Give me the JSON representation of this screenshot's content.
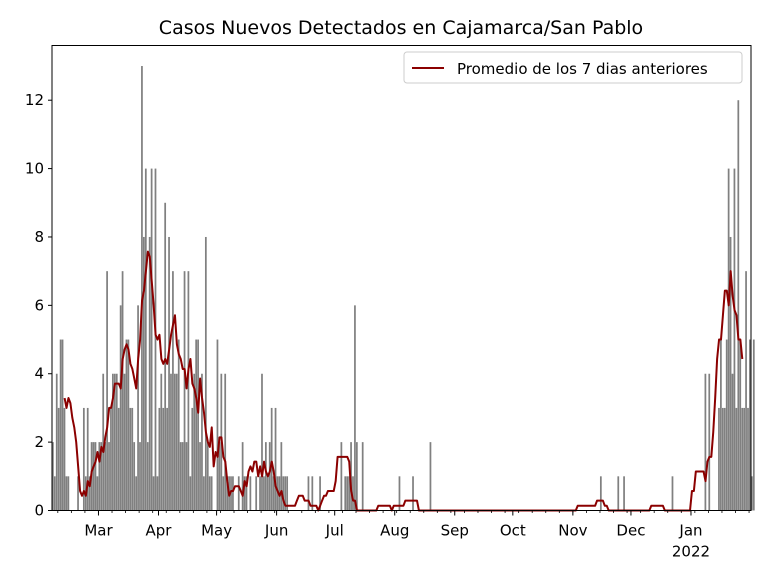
{
  "chart_data": {
    "type": "bar",
    "title": "Casos Nuevos Detectados en Cajamarca/San Pablo",
    "xlabel": "",
    "ylabel": "",
    "x_start_date": "2021-02-05",
    "x_end_date": "2022-01-31",
    "ylim": [
      0,
      13.6
    ],
    "y_ticks": [
      0,
      2,
      4,
      6,
      8,
      10,
      12
    ],
    "x_ticks": [
      {
        "date": "2021-03-01",
        "label": "Mar"
      },
      {
        "date": "2021-04-01",
        "label": "Apr"
      },
      {
        "date": "2021-05-01",
        "label": "May"
      },
      {
        "date": "2021-06-01",
        "label": "Jun"
      },
      {
        "date": "2021-07-01",
        "label": "Jul"
      },
      {
        "date": "2021-08-01",
        "label": "Aug"
      },
      {
        "date": "2021-09-01",
        "label": "Sep"
      },
      {
        "date": "2021-10-01",
        "label": "Oct"
      },
      {
        "date": "2021-11-01",
        "label": "Nov"
      },
      {
        "date": "2021-12-01",
        "label": "Dec"
      },
      {
        "date": "2022-01-01",
        "label": "Jan",
        "sublabel": "2022"
      }
    ],
    "bar_color": "#808080",
    "line_color": "#8b0000",
    "legend": {
      "position": "top-right"
    },
    "series": [
      {
        "kind": "bar",
        "values": [
          2,
          1,
          4,
          3,
          5,
          5,
          3,
          1,
          1,
          0,
          0,
          0,
          0,
          1,
          0,
          0,
          3,
          1,
          3,
          1,
          2,
          2,
          2,
          1,
          2,
          2,
          4,
          2,
          7,
          2,
          3,
          4,
          4,
          4,
          3,
          6,
          7,
          4,
          5,
          5,
          3,
          3,
          2,
          1,
          6,
          2,
          13,
          8,
          10,
          2,
          8,
          10,
          1,
          10,
          1,
          3,
          4,
          3,
          9,
          3,
          8,
          4,
          7,
          4,
          4,
          5,
          2,
          2,
          7,
          2,
          7,
          1,
          3,
          4,
          5,
          5,
          2,
          4,
          1,
          8,
          2,
          1,
          1,
          0,
          0,
          5,
          2,
          4,
          1,
          4,
          1,
          1,
          1,
          1,
          0,
          0,
          1,
          0,
          2,
          1,
          1,
          0,
          1,
          0,
          0,
          1,
          0,
          1,
          4,
          1,
          2,
          1,
          2,
          3,
          1,
          3,
          1,
          1,
          2,
          1,
          1,
          1,
          0,
          0,
          0,
          0,
          0,
          0,
          0,
          0,
          0,
          0,
          1,
          0,
          1,
          0,
          0,
          0,
          1,
          0,
          0,
          0,
          0,
          0,
          0,
          0,
          0,
          0,
          0,
          2,
          0,
          1,
          1,
          1,
          2,
          1,
          6,
          2,
          0,
          0,
          2,
          0,
          0,
          0,
          0,
          0,
          0,
          0,
          0,
          0,
          0,
          0,
          0,
          0,
          0,
          0,
          0,
          0,
          0,
          1,
          0,
          0,
          0,
          0,
          0,
          0,
          1,
          0,
          0,
          0,
          0,
          0,
          0,
          0,
          0,
          2,
          0,
          0,
          0,
          0,
          0,
          0,
          0,
          0,
          0,
          0,
          0,
          0,
          0,
          0,
          0,
          0,
          0,
          0,
          0,
          0,
          0,
          0,
          0,
          0,
          0,
          0,
          0,
          0,
          0,
          0,
          0,
          0,
          0,
          0,
          0,
          0,
          0,
          0,
          0,
          0,
          0,
          0,
          0,
          0,
          0,
          0,
          0,
          0,
          0,
          0,
          0,
          0,
          0,
          0,
          0,
          0,
          0,
          0,
          0,
          0,
          0,
          0,
          0,
          0,
          0,
          0,
          0,
          0,
          0,
          0,
          0,
          0,
          0,
          0,
          0,
          0,
          0,
          0,
          0,
          0,
          0,
          0,
          0,
          0,
          0,
          0,
          0,
          1,
          0,
          0,
          0,
          0,
          0,
          0,
          0,
          0,
          1,
          0,
          0,
          1,
          0,
          0,
          0,
          0,
          0,
          0,
          0,
          0,
          0,
          0,
          0,
          0,
          0,
          0,
          0,
          0,
          0,
          0,
          0,
          0,
          0,
          0,
          0,
          0,
          1,
          0,
          0,
          0,
          0,
          0,
          0,
          0,
          0,
          0,
          0,
          0,
          0,
          0,
          0,
          0,
          0,
          4,
          0,
          4,
          0,
          0,
          0,
          0,
          3,
          5,
          3,
          3,
          5,
          10,
          8,
          4,
          10,
          3,
          12,
          5,
          3,
          3,
          7,
          3,
          5,
          1,
          5
        ]
      },
      {
        "kind": "line",
        "name": "Promedio de los 7 dias anteriores",
        "values": [
          null,
          null,
          null,
          null,
          null,
          null,
          3.29,
          3.0,
          3.29,
          3.14,
          2.71,
          2.43,
          2.0,
          1.29,
          0.57,
          0.43,
          0.57,
          0.43,
          0.86,
          0.71,
          1.14,
          1.29,
          1.43,
          1.71,
          1.43,
          1.86,
          1.71,
          2.14,
          2.43,
          3.0,
          3.0,
          3.29,
          3.71,
          3.71,
          3.71,
          3.57,
          4.43,
          4.71,
          4.86,
          4.71,
          4.29,
          4.14,
          3.86,
          3.57,
          4.43,
          5.0,
          6.14,
          6.43,
          7.0,
          7.57,
          7.43,
          6.71,
          6.0,
          5.14,
          5.0,
          5.14,
          4.43,
          4.29,
          4.43,
          4.29,
          4.71,
          5.14,
          5.43,
          5.71,
          4.86,
          4.57,
          4.43,
          4.14,
          4.14,
          3.57,
          4.14,
          4.43,
          3.71,
          3.57,
          3.29,
          2.86,
          3.86,
          3.29,
          2.86,
          2.29,
          2.0,
          1.86,
          2.43,
          1.29,
          1.71,
          1.57,
          2.14,
          2.14,
          1.57,
          1.43,
          0.86,
          0.43,
          0.57,
          0.57,
          0.71,
          0.71,
          0.71,
          0.57,
          0.43,
          0.86,
          0.71,
          1.14,
          1.29,
          1.14,
          1.43,
          1.43,
          1.0,
          1.29,
          1.0,
          1.43,
          1.14,
          1.0,
          1.14,
          1.43,
          1.14,
          0.71,
          0.57,
          0.43,
          0.57,
          0.29,
          0.14,
          0.14,
          0.14,
          0.14,
          0.14,
          0.14,
          0.29,
          0.43,
          0.43,
          0.43,
          0.29,
          0.29,
          0.29,
          0.14,
          0.14,
          0.14,
          0.14,
          0.0,
          0.14,
          0.29,
          0.43,
          0.43,
          0.57,
          0.57,
          0.57,
          0.57,
          0.86,
          1.57,
          1.57,
          1.57,
          1.57,
          1.57,
          1.57,
          1.43,
          0.57,
          0.29,
          0.29,
          0.0,
          0.0,
          0.0,
          0.0,
          0.0,
          0.0,
          0.0,
          0.0,
          0.0,
          0.0,
          0.0,
          0.14,
          0.14,
          0.14,
          0.14,
          0.14,
          0.14,
          0.14,
          0.0,
          0.14,
          0.14,
          0.14,
          0.14,
          0.14,
          0.14,
          0.29,
          0.29,
          0.29,
          0.29,
          0.29,
          0.29,
          0.29,
          0.0,
          0.0,
          0.0,
          0.0,
          0.0,
          0.0,
          0.0,
          0.0,
          0.0,
          0.0,
          0.0,
          0.0,
          0.0,
          0.0,
          0.0,
          0.0,
          0.0,
          0.0,
          0.0,
          0.0,
          0.0,
          0.0,
          0.0,
          0.0,
          0.0,
          0.0,
          0.0,
          0.0,
          0.0,
          0.0,
          0.0,
          0.0,
          0.0,
          0.0,
          0.0,
          0.0,
          0.0,
          0.0,
          0.0,
          0.0,
          0.0,
          0.0,
          0.0,
          0.0,
          0.0,
          0.0,
          0.0,
          0.0,
          0.0,
          0.0,
          0.0,
          0.0,
          0.0,
          0.0,
          0.0,
          0.0,
          0.0,
          0.0,
          0.0,
          0.0,
          0.0,
          0.0,
          0.0,
          0.0,
          0.0,
          0.0,
          0.0,
          0.0,
          0.0,
          0.0,
          0.0,
          0.0,
          0.0,
          0.0,
          0.0,
          0.0,
          0.0,
          0.0,
          0.0,
          0.0,
          0.0,
          0.0,
          0.14,
          0.14,
          0.14,
          0.14,
          0.14,
          0.14,
          0.14,
          0.14,
          0.14,
          0.14,
          0.29,
          0.29,
          0.29,
          0.29,
          0.14,
          0.14,
          0.0,
          0.0,
          0.0,
          0.0,
          0.0,
          0.0,
          0.0,
          0.0,
          0.0,
          0.0,
          0.0,
          0.0,
          0.0,
          0.0,
          0.0,
          0.0,
          0.0,
          0.0,
          0.0,
          0.0,
          0.0,
          0.0,
          0.14,
          0.14,
          0.14,
          0.14,
          0.14,
          0.14,
          0.14,
          0.0,
          0.0,
          0.0,
          0.0,
          0.0,
          0.0,
          0.0,
          0.0,
          0.0,
          0.0,
          0.0,
          0.0,
          0.0,
          0.0,
          0.57,
          0.57,
          1.14,
          1.14,
          1.14,
          1.14,
          1.14,
          0.86,
          1.43,
          1.57,
          1.57,
          2.29,
          3.29,
          4.43,
          5.0,
          5.0,
          5.71,
          6.43,
          6.43,
          6.0,
          7.0,
          6.29,
          5.86,
          5.71,
          5.0,
          5.0,
          4.43
        ]
      }
    ]
  }
}
